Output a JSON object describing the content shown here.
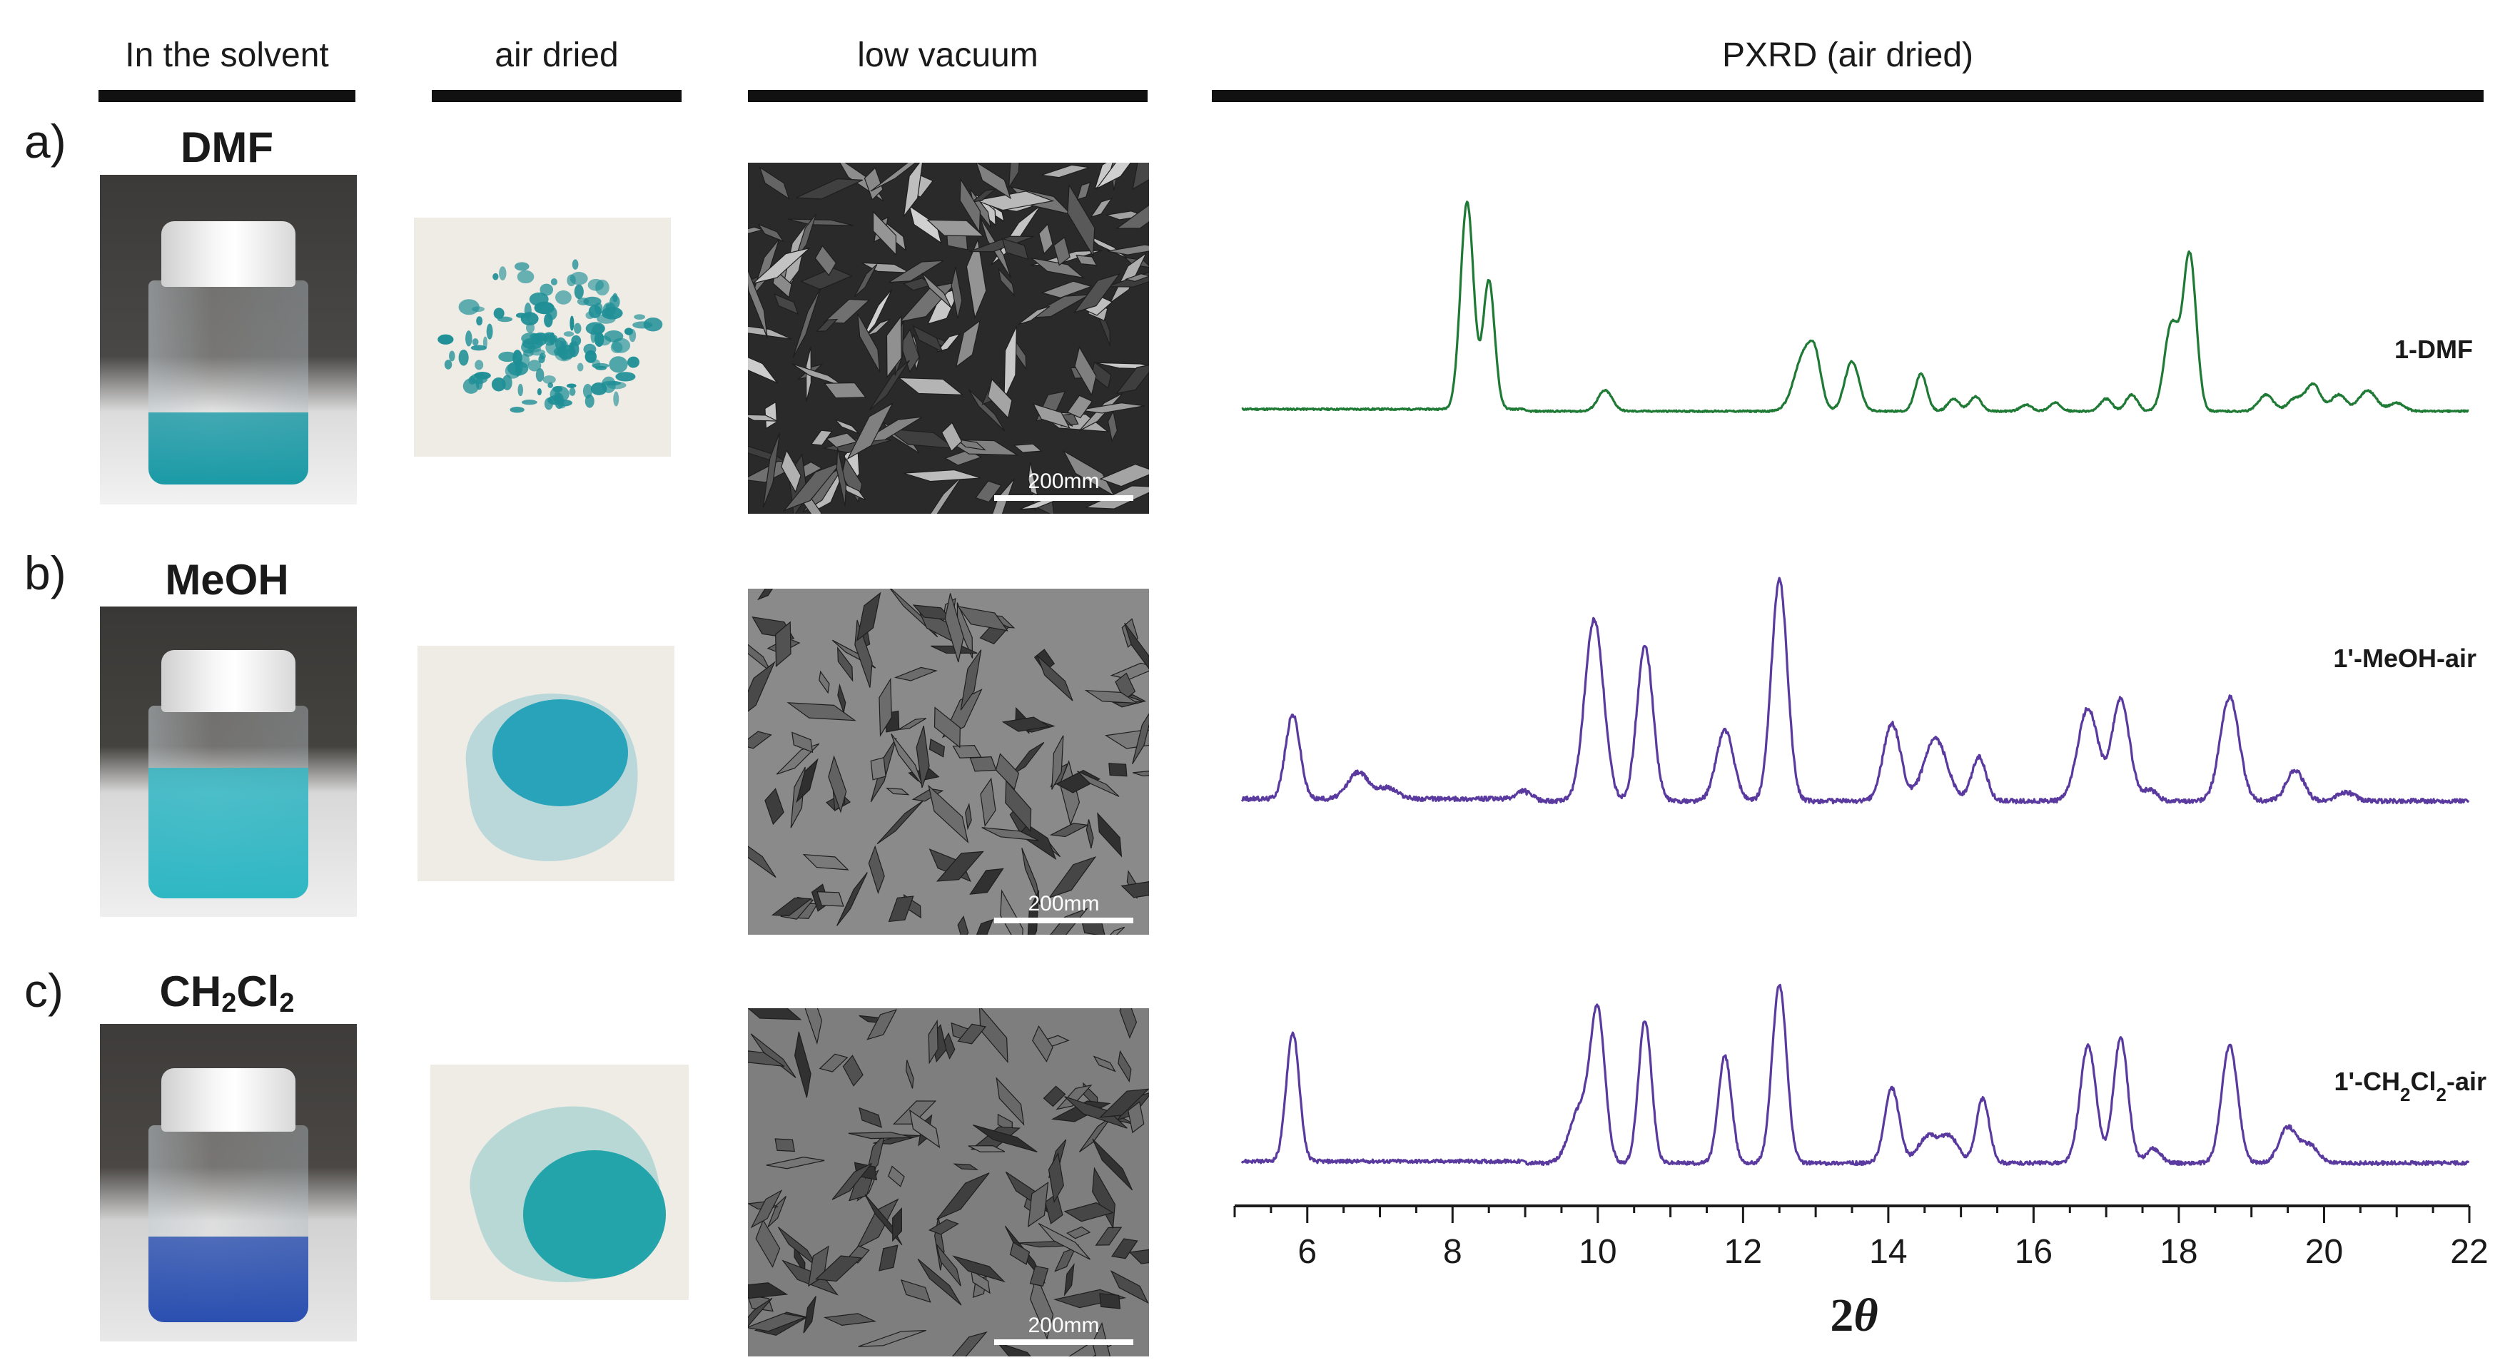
{
  "columns": {
    "solvent": "In the solvent",
    "air_dried": "air dried",
    "low_vacuum": "low vacuum",
    "pxrd": "PXRD (air dried)"
  },
  "rows": [
    {
      "label": "a)",
      "solvent": "DMF",
      "solvent_sub": [],
      "scale_bar": "200mm",
      "liquid_color": "#1a9aa6",
      "powder_color": "#1f8f96"
    },
    {
      "label": "b)",
      "solvent": "MeOH",
      "solvent_sub": [],
      "scale_bar": "200mm",
      "liquid_color": "#2fb7c4",
      "powder_color": "#21a0b8"
    },
    {
      "label": "c)",
      "solvent_parts": [
        "CH",
        "2",
        "Cl",
        "2"
      ],
      "scale_bar": "200mm",
      "liquid_color": "#2a4fb0",
      "powder_color": "#1aa0a8"
    }
  ],
  "chart_data": {
    "type": "line",
    "xlabel": "2θ",
    "xlim": [
      5,
      22
    ],
    "x_ticks": [
      6,
      8,
      10,
      12,
      14,
      16,
      18,
      20,
      22
    ],
    "grid": false,
    "series": [
      {
        "name": "1-DMF",
        "color": "#1f7a35",
        "baseline": 0.03,
        "peaks": [
          [
            8.2,
            1.0,
            0.09
          ],
          [
            8.5,
            0.62,
            0.08
          ],
          [
            10.1,
            0.1,
            0.1
          ],
          [
            12.85,
            0.28,
            0.14
          ],
          [
            13.0,
            0.15,
            0.08
          ],
          [
            13.5,
            0.24,
            0.1
          ],
          [
            14.45,
            0.18,
            0.08
          ],
          [
            14.9,
            0.06,
            0.08
          ],
          [
            15.2,
            0.07,
            0.08
          ],
          [
            15.9,
            0.03,
            0.08
          ],
          [
            16.3,
            0.04,
            0.08
          ],
          [
            17.0,
            0.06,
            0.08
          ],
          [
            17.35,
            0.08,
            0.08
          ],
          [
            17.9,
            0.42,
            0.1
          ],
          [
            18.15,
            0.75,
            0.09
          ],
          [
            19.2,
            0.08,
            0.1
          ],
          [
            19.6,
            0.06,
            0.1
          ],
          [
            19.85,
            0.13,
            0.1
          ],
          [
            20.2,
            0.08,
            0.1
          ],
          [
            20.6,
            0.1,
            0.12
          ],
          [
            21.0,
            0.04,
            0.1
          ]
        ]
      },
      {
        "name": "1'-MeOH-air",
        "color": "#5a3a9f",
        "baseline": 0.04,
        "peaks": [
          [
            5.8,
            0.38,
            0.1
          ],
          [
            6.7,
            0.12,
            0.14
          ],
          [
            7.1,
            0.05,
            0.14
          ],
          [
            9.0,
            0.04,
            0.1
          ],
          [
            9.95,
            0.82,
            0.13
          ],
          [
            10.65,
            0.7,
            0.11
          ],
          [
            11.75,
            0.32,
            0.12
          ],
          [
            12.5,
            1.0,
            0.11
          ],
          [
            14.05,
            0.35,
            0.12
          ],
          [
            14.65,
            0.28,
            0.16
          ],
          [
            15.25,
            0.2,
            0.1
          ],
          [
            16.75,
            0.42,
            0.14
          ],
          [
            17.2,
            0.46,
            0.12
          ],
          [
            17.6,
            0.05,
            0.1
          ],
          [
            18.7,
            0.47,
            0.13
          ],
          [
            19.6,
            0.14,
            0.12
          ],
          [
            20.3,
            0.04,
            0.12
          ]
        ]
      },
      {
        "name": "1'-CH2Cl2-air",
        "color": "#5a3a9f",
        "baseline": 0.04,
        "peaks": [
          [
            5.8,
            0.72,
            0.09
          ],
          [
            9.75,
            0.3,
            0.14
          ],
          [
            10.0,
            0.82,
            0.1
          ],
          [
            10.65,
            0.8,
            0.09
          ],
          [
            11.75,
            0.6,
            0.09
          ],
          [
            12.5,
            1.0,
            0.1
          ],
          [
            14.05,
            0.42,
            0.1
          ],
          [
            14.55,
            0.15,
            0.14
          ],
          [
            14.85,
            0.14,
            0.12
          ],
          [
            15.3,
            0.36,
            0.09
          ],
          [
            16.75,
            0.66,
            0.11
          ],
          [
            17.2,
            0.7,
            0.1
          ],
          [
            17.65,
            0.08,
            0.1
          ],
          [
            18.7,
            0.66,
            0.11
          ],
          [
            19.5,
            0.2,
            0.12
          ],
          [
            19.8,
            0.1,
            0.12
          ]
        ]
      }
    ]
  }
}
